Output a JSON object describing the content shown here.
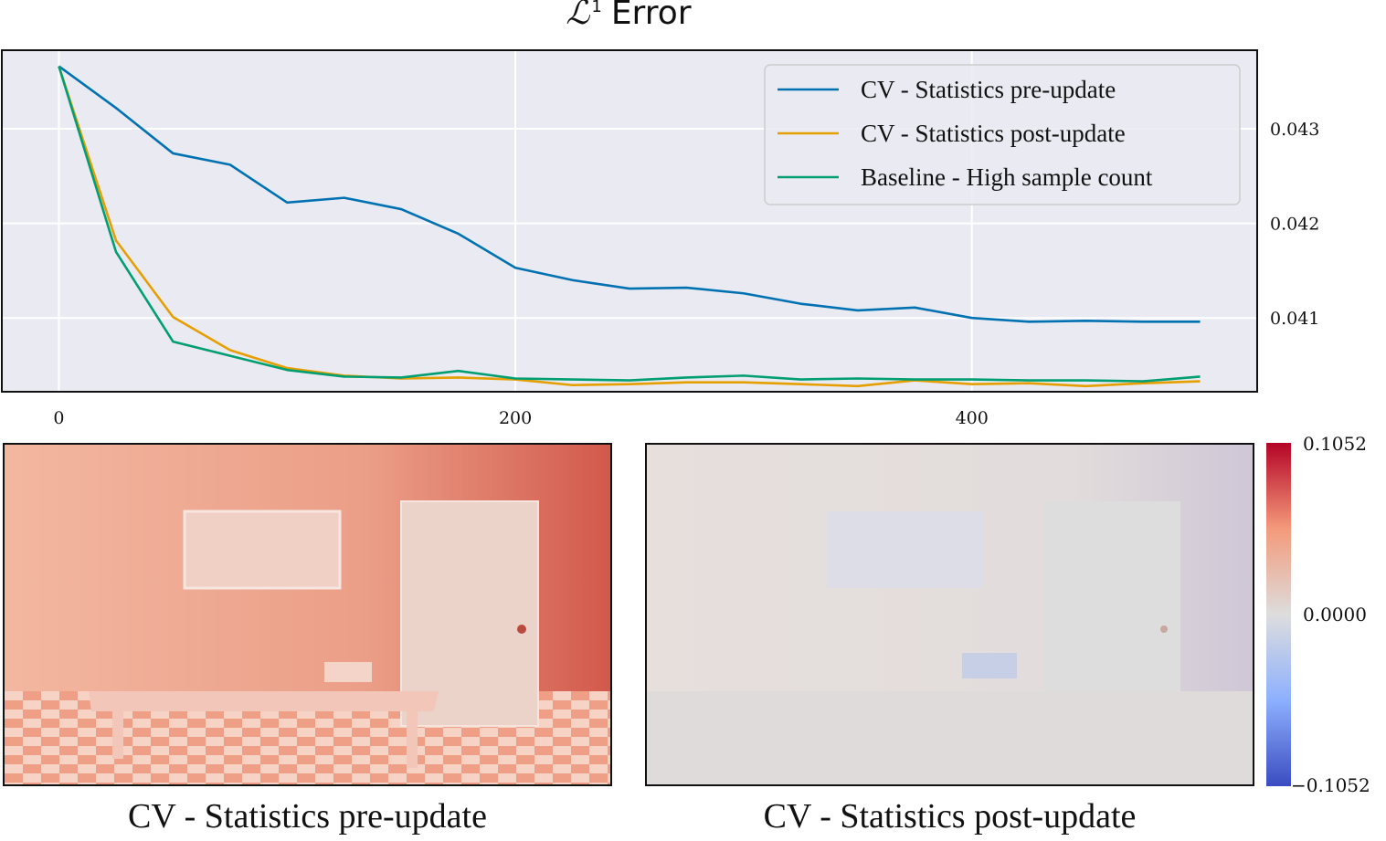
{
  "chart_data": {
    "type": "line",
    "title": {
      "script": "ℒ",
      "sup": "1",
      "text": "Error"
    },
    "x_ticks": [
      0,
      200,
      400
    ],
    "y_ticks": [
      "0.041",
      "0.042",
      "0.043"
    ],
    "xlim": [
      -25,
      525
    ],
    "ylim": [
      0.04022,
      0.04383
    ],
    "grid": true,
    "legend_position": "top-right",
    "x": [
      0,
      25,
      50,
      75,
      100,
      125,
      150,
      175,
      200,
      225,
      250,
      275,
      300,
      325,
      350,
      375,
      400,
      425,
      450,
      475,
      500
    ],
    "series": [
      {
        "name": "CV - Statistics pre-update",
        "color": "#0072b2",
        "values": [
          0.04366,
          0.04322,
          0.04274,
          0.04262,
          0.04222,
          0.04227,
          0.04215,
          0.04189,
          0.04153,
          0.0414,
          0.04131,
          0.04132,
          0.04126,
          0.04115,
          0.04108,
          0.04111,
          0.041,
          0.04096,
          0.04097,
          0.04096,
          0.04096
        ]
      },
      {
        "name": "CV - Statistics post-update",
        "color": "#e69f00",
        "values": [
          0.04366,
          0.04182,
          0.04101,
          0.04066,
          0.04047,
          0.04039,
          0.04036,
          0.04037,
          0.04035,
          0.04029,
          0.0403,
          0.04032,
          0.04032,
          0.0403,
          0.04028,
          0.04034,
          0.0403,
          0.04031,
          0.04028,
          0.04031,
          0.04033
        ]
      },
      {
        "name": "Baseline - High sample count",
        "color": "#009e73",
        "values": [
          0.04366,
          0.0417,
          0.04075,
          0.0406,
          0.04045,
          0.04038,
          0.04037,
          0.04044,
          0.04036,
          0.04035,
          0.04034,
          0.04037,
          0.04039,
          0.04035,
          0.04036,
          0.04035,
          0.04035,
          0.04034,
          0.04034,
          0.04033,
          0.04038
        ]
      }
    ]
  },
  "heatmaps": [
    {
      "caption": "CV - Statistics pre-update"
    },
    {
      "caption": "CV - Statistics post-update"
    }
  ],
  "colorbar": {
    "max_label": "0.1052",
    "mid_label": "0.0000",
    "min_label": "−0.1052",
    "colors": [
      "#3b4cc0",
      "#8db0fe",
      "#dddddd",
      "#f49a7b",
      "#b40426"
    ]
  }
}
